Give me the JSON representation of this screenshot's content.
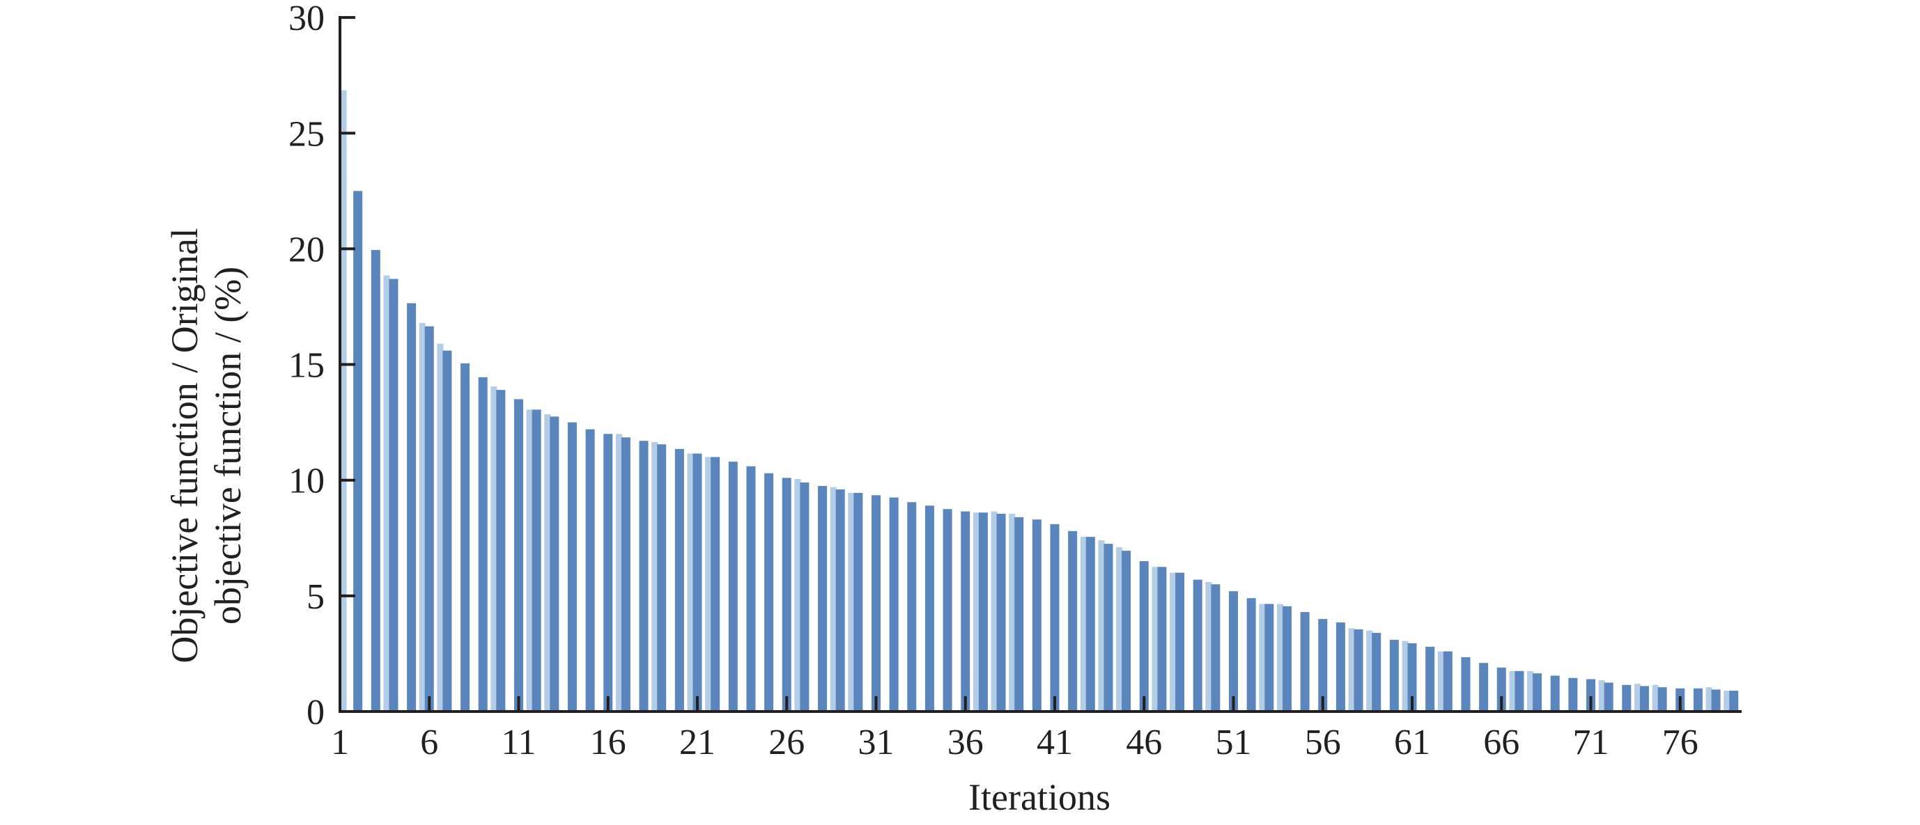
{
  "chart_data": {
    "type": "bar",
    "title": "",
    "xlabel": "Iterations",
    "ylabel_line1": "Objective function / Original",
    "ylabel_line2": "objective function / (%)",
    "categories": [
      1,
      2,
      3,
      4,
      5,
      6,
      7,
      8,
      9,
      10,
      11,
      12,
      13,
      14,
      15,
      16,
      17,
      18,
      19,
      20,
      21,
      22,
      23,
      24,
      25,
      26,
      27,
      28,
      29,
      30,
      31,
      32,
      33,
      34,
      35,
      36,
      37,
      38,
      39,
      40,
      41,
      42,
      43,
      44,
      45,
      46,
      47,
      48,
      49,
      50,
      51,
      52,
      53,
      54,
      55,
      56,
      57,
      58,
      59,
      60,
      61,
      62,
      63,
      64,
      65,
      66,
      67,
      68,
      69,
      70,
      71,
      72,
      73,
      74,
      75,
      76,
      77,
      78,
      79
    ],
    "values": [
      26.85,
      22.5,
      19.95,
      18.7,
      17.65,
      16.65,
      15.6,
      15.05,
      14.45,
      13.9,
      13.5,
      13.05,
      12.75,
      12.5,
      12.2,
      12.0,
      11.85,
      11.7,
      11.55,
      11.35,
      11.15,
      11.0,
      10.8,
      10.6,
      10.3,
      10.1,
      9.9,
      9.75,
      9.6,
      9.45,
      9.35,
      9.25,
      9.05,
      8.9,
      8.75,
      8.65,
      8.6,
      8.55,
      8.4,
      8.3,
      8.1,
      7.8,
      7.55,
      7.25,
      6.95,
      6.5,
      6.25,
      6.0,
      5.7,
      5.5,
      5.2,
      4.9,
      4.65,
      4.55,
      4.3,
      4.0,
      3.85,
      3.55,
      3.4,
      3.1,
      2.95,
      2.8,
      2.6,
      2.35,
      2.1,
      1.9,
      1.75,
      1.65,
      1.55,
      1.45,
      1.4,
      1.25,
      1.15,
      1.1,
      1.05,
      1.0,
      1.0,
      0.95,
      0.9
    ],
    "first_bar_light_only": true,
    "light_overlays": {
      "1": 26.85,
      "4": 18.85,
      "6": 16.8,
      "7": 15.9,
      "10": 14.05,
      "12": 13.05,
      "13": 12.85,
      "17": 12.0,
      "19": 11.65,
      "21": 11.15,
      "22": 11.0,
      "27": 10.05,
      "29": 9.7,
      "30": 9.45,
      "37": 8.6,
      "38": 8.65,
      "39": 8.55,
      "43": 7.55,
      "44": 7.4,
      "45": 7.1,
      "47": 6.25,
      "48": 6.0,
      "50": 5.6,
      "53": 4.65,
      "54": 4.65,
      "58": 3.6,
      "59": 3.5,
      "61": 3.05,
      "63": 2.6,
      "67": 1.75,
      "68": 1.75,
      "72": 1.35,
      "74": 1.2,
      "75": 1.15,
      "78": 1.05,
      "79": 0.9
    },
    "xticks": [
      1,
      6,
      11,
      16,
      21,
      26,
      31,
      36,
      41,
      46,
      51,
      56,
      61,
      66,
      71,
      76
    ],
    "yticks": [
      0,
      5,
      10,
      15,
      20,
      25,
      30
    ],
    "ylim": [
      0,
      30
    ],
    "grid": false,
    "legend_position": "none",
    "colors": {
      "bar": "#5b86bd",
      "bar_light": "#b3cde6",
      "axis": "#231f20",
      "background": "#ffffff"
    }
  }
}
